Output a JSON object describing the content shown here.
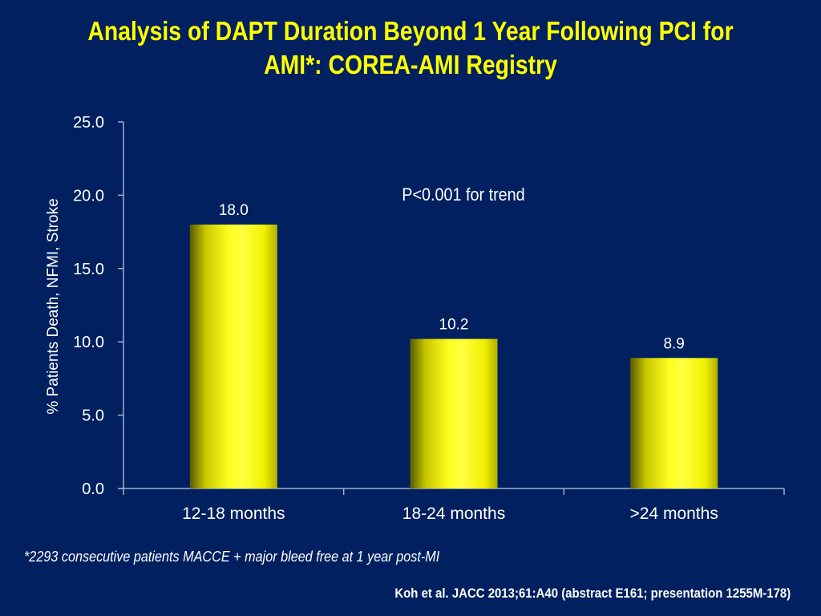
{
  "slide": {
    "title_line1": "Analysis of DAPT Duration Beyond 1 Year Following PCI for",
    "title_line2": "AMI*:  COREA-AMI Registry",
    "footnote": "*2293 consecutive patients MACCE + major bleed free at 1 year post-MI",
    "citation": "Koh et al. JACC 2013;61:A40 (abstract E161; presentation 1255M-178)",
    "colors": {
      "background": "#002060",
      "title": "#ffff00",
      "bar": "#ffff00",
      "text": "#ffffff",
      "axis": "#a0aed0"
    }
  },
  "chart_data": {
    "type": "bar",
    "title": "",
    "xlabel": "",
    "ylabel": "% Patients Death, NFMI, Stroke",
    "categories": [
      "12-18 months",
      "18-24 months",
      ">24 months"
    ],
    "values": [
      18.0,
      10.2,
      8.9
    ],
    "data_labels": [
      "18.0",
      "10.2",
      "8.9"
    ],
    "ylim": [
      0,
      25
    ],
    "yticks": [
      0,
      5,
      10,
      15,
      20,
      25
    ],
    "ytick_labels": [
      "0.0",
      "5.0",
      "10.0",
      "15.0",
      "20.0",
      "25.0"
    ],
    "annotation": "P<0.001 for trend",
    "grid": false,
    "legend": "none"
  }
}
